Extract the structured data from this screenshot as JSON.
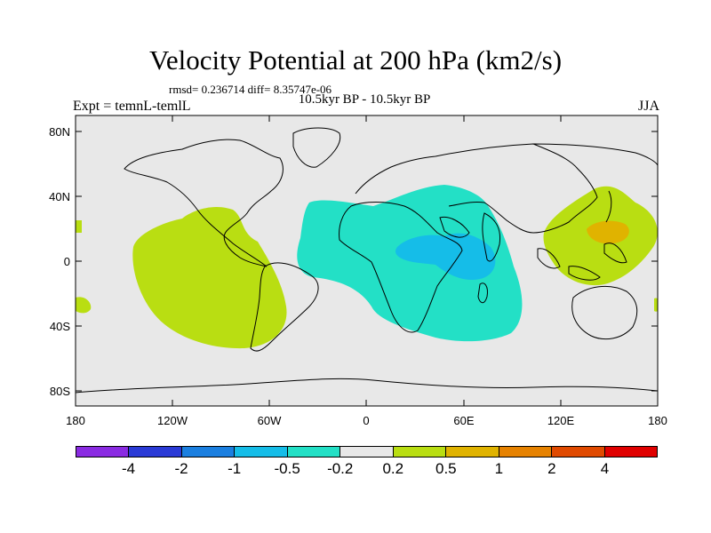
{
  "title": "Velocity Potential at 200 hPa (km2/s)",
  "stats": "rmsd= 0.236714 diff= 8.35747e-06",
  "period": "10.5kyr BP - 10.5kyr BP",
  "experiment": "Expt = temnL-temlL",
  "season": "JJA",
  "axes": {
    "lat_labels": [
      "80N",
      "40N",
      "0",
      "40S",
      "80S"
    ],
    "lon_labels": [
      "180",
      "120W",
      "60W",
      "0",
      "60E",
      "120E",
      "180"
    ]
  },
  "colorbar": {
    "colors": [
      "#8a2be2",
      "#2a3ad6",
      "#1b7fe0",
      "#15bde8",
      "#23e0c6",
      "#e8e8e8",
      "#b9de12",
      "#e0b300",
      "#e68200",
      "#e04a00",
      "#e00000"
    ],
    "labels": [
      "-4",
      "-2",
      "-1",
      "-0.5",
      "-0.2",
      "0.2",
      "0.5",
      "1",
      "2",
      "4"
    ]
  },
  "fields": {
    "background": "#e8e8e8",
    "positive_weak": "#b9de12",
    "positive_mid": "#e0b300",
    "negative_weak": "#23e0c6",
    "negative_mid": "#15bde8"
  }
}
